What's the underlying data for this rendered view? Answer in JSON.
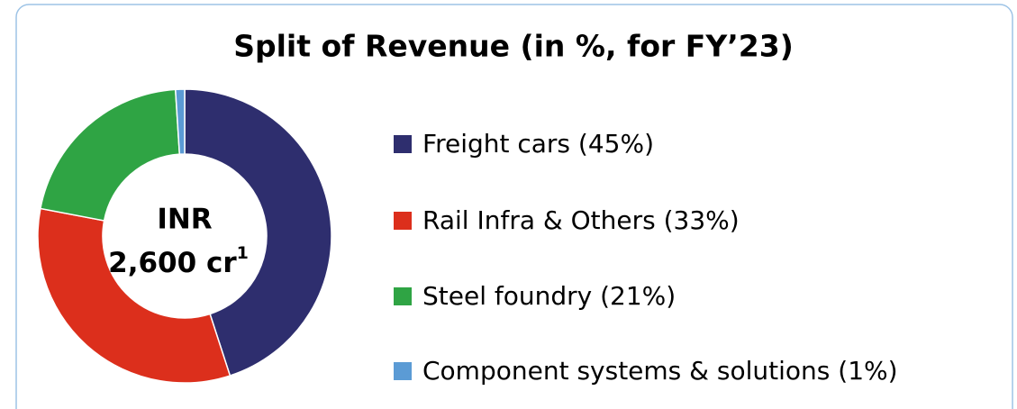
{
  "chart_data": {
    "type": "donut",
    "title": "Split of Revenue (in %, for FY’23)",
    "categories": [
      "Freight cars (45%)",
      "Rail Infra & Others (33%)",
      "Steel foundry (21%)",
      "Component systems & solutions (1%)"
    ],
    "values": [
      45,
      33,
      21,
      1
    ],
    "colors": [
      "#2e2e6e",
      "#dc2f1c",
      "#2fa444",
      "#5b9bd5"
    ],
    "center_label": [
      "INR",
      "2,600 cr"
    ],
    "center_label_footnote": "1",
    "legend": "right"
  }
}
